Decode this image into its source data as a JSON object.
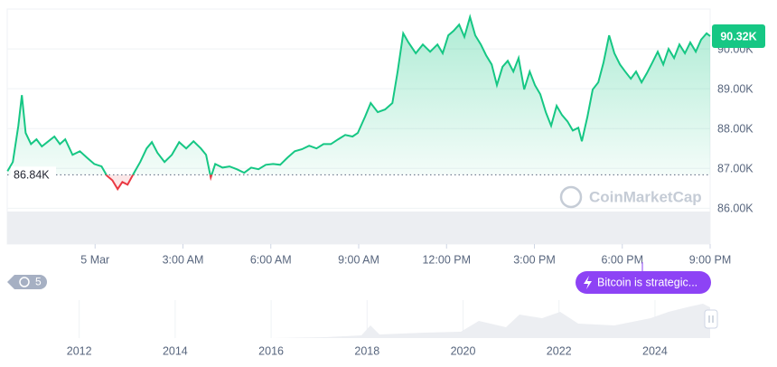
{
  "chart_data": {
    "type": "line",
    "x": [
      -2.99,
      -2.81,
      -2.62,
      -2.5,
      -2.37,
      -2.19,
      -2.0,
      -1.82,
      -1.63,
      -1.39,
      -1.2,
      -1.02,
      -0.77,
      -0.52,
      -0.28,
      -0.03,
      0.22,
      0.4,
      0.59,
      0.77,
      0.93,
      1.11,
      1.33,
      1.54,
      1.76,
      1.94,
      2.13,
      2.37,
      2.62,
      2.87,
      3.11,
      3.36,
      3.61,
      3.79,
      3.95,
      4.1,
      4.35,
      4.59,
      4.84,
      5.09,
      5.33,
      5.58,
      5.83,
      6.08,
      6.32,
      6.57,
      6.82,
      7.06,
      7.31,
      7.56,
      7.8,
      8.05,
      8.3,
      8.54,
      8.79,
      8.97,
      9.22,
      9.41,
      9.65,
      9.9,
      10.15,
      10.33,
      10.52,
      10.7,
      10.95,
      11.19,
      11.44,
      11.69,
      11.87,
      12.06,
      12.24,
      12.43,
      12.61,
      12.8,
      12.98,
      13.17,
      13.35,
      13.54,
      13.72,
      13.91,
      14.09,
      14.28,
      14.46,
      14.65,
      14.84,
      15.02,
      15.2,
      15.39,
      15.57,
      15.76,
      15.94,
      16.13,
      16.31,
      16.5,
      16.62,
      16.81,
      16.99,
      17.18,
      17.36,
      17.55,
      17.73,
      17.92,
      18.1,
      18.29,
      18.47,
      18.66,
      18.84,
      19.03,
      19.21,
      19.4,
      19.58,
      19.77,
      19.95,
      20.14,
      20.32,
      20.51,
      20.69,
      20.88,
      21.0
    ],
    "values": [
      86930,
      87160,
      88070,
      88840,
      87890,
      87610,
      87730,
      87550,
      87660,
      87800,
      87610,
      87730,
      87340,
      87430,
      87270,
      87110,
      87050,
      86820,
      86700,
      86480,
      86660,
      86590,
      86890,
      87160,
      87500,
      87660,
      87390,
      87160,
      87340,
      87660,
      87500,
      87680,
      87500,
      87340,
      86770,
      87110,
      87020,
      87050,
      86980,
      86890,
      87020,
      86980,
      87090,
      87110,
      87090,
      87270,
      87430,
      87480,
      87570,
      87500,
      87610,
      87610,
      87730,
      87840,
      87800,
      87890,
      88300,
      88640,
      88410,
      88480,
      88640,
      89430,
      90390,
      90160,
      89890,
      90110,
      89930,
      90110,
      89890,
      90340,
      90450,
      90610,
      90300,
      90800,
      90340,
      90110,
      89840,
      89610,
      89090,
      89550,
      89700,
      89430,
      89770,
      88980,
      89430,
      89090,
      88860,
      88410,
      88070,
      88570,
      88340,
      88180,
      87950,
      88020,
      87680,
      88300,
      88980,
      89160,
      89660,
      90340,
      89890,
      89610,
      89430,
      89250,
      89430,
      89160,
      89390,
      89660,
      89930,
      89610,
      90000,
      89770,
      90110,
      89890,
      90160,
      89930,
      90230,
      90390,
      90320
    ],
    "color": "#16c784",
    "down_color": "#ea3943",
    "baseline": {
      "value": 86840,
      "label": "86.84K"
    },
    "current_price": {
      "value": 90320,
      "label": "90.32K"
    },
    "xlim": [
      -3,
      21
    ],
    "xticks": [
      {
        "value": 0,
        "label": "5 Mar"
      },
      {
        "value": 3,
        "label": "3:00 AM"
      },
      {
        "value": 6,
        "label": "6:00 AM"
      },
      {
        "value": 9,
        "label": "9:00 AM"
      },
      {
        "value": 12,
        "label": "12:00 PM"
      },
      {
        "value": 15,
        "label": "3:00 PM"
      },
      {
        "value": 18,
        "label": "6:00 PM"
      },
      {
        "value": 21,
        "label": "9:00 PM"
      }
    ],
    "ylim": [
      85100,
      91000
    ],
    "yticks": [
      {
        "value": 86000,
        "label": "86.00K"
      },
      {
        "value": 87000,
        "label": "87.00K"
      },
      {
        "value": 88000,
        "label": "88.00K"
      },
      {
        "value": 89000,
        "label": "89.00K"
      },
      {
        "value": 90000,
        "label": "90.00K"
      }
    ],
    "grid": true,
    "watermark": "CoinMarketCap",
    "history_badge": "5",
    "event_label": "Bitcoin is strategic...",
    "navigator": {
      "xlim": [
        2010.5,
        2025.15
      ],
      "xticks": [
        2012,
        2014,
        2016,
        2018,
        2020,
        2022,
        2024
      ]
    }
  }
}
